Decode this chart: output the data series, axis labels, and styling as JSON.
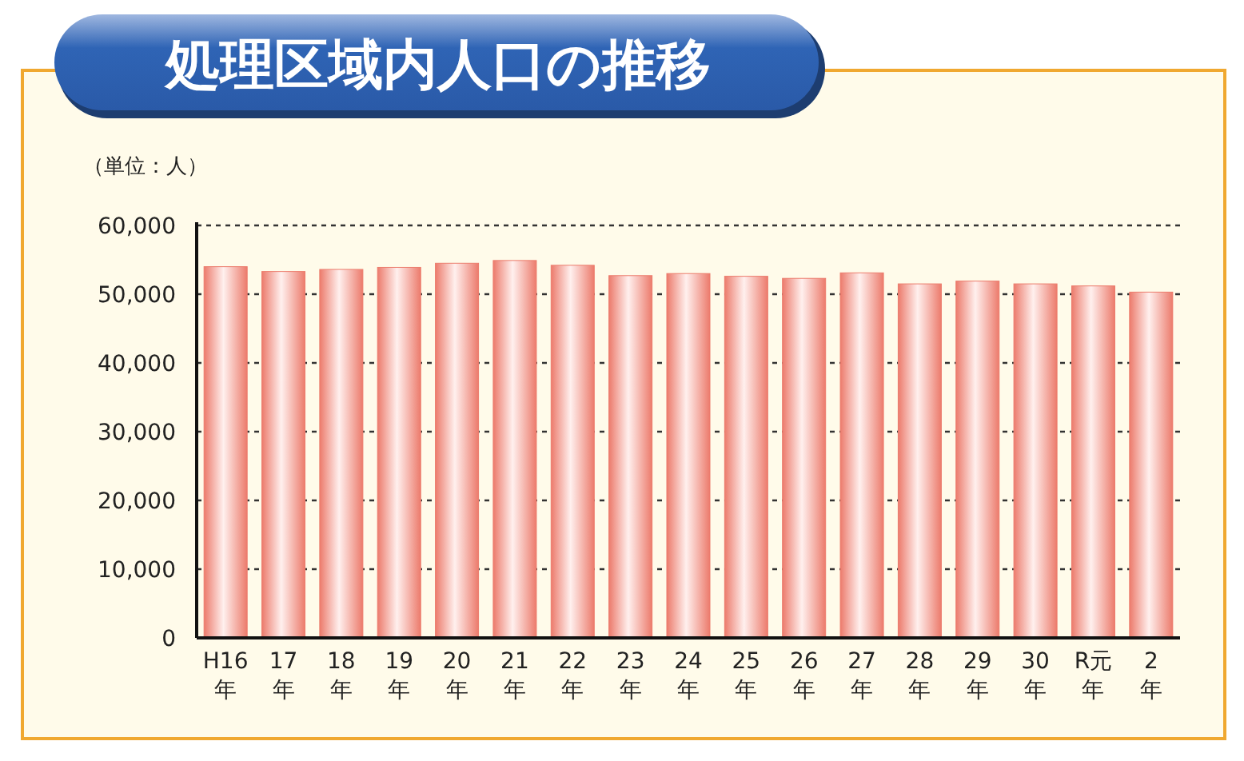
{
  "chart_data": {
    "type": "bar",
    "title": "処理区域内人口の推移",
    "ylabel": "（単位：人）",
    "categories": [
      "H16年",
      "17年",
      "18年",
      "19年",
      "20年",
      "21年",
      "22年",
      "23年",
      "24年",
      "25年",
      "26年",
      "27年",
      "28年",
      "29年",
      "30年",
      "R元年",
      "2年"
    ],
    "values": [
      54000,
      53300,
      53600,
      53900,
      54500,
      54900,
      54200,
      52700,
      53000,
      52600,
      52300,
      53100,
      51500,
      51900,
      51500,
      51200,
      50300
    ],
    "color": "#ec7b6c",
    "ylim": [
      0,
      60000
    ],
    "yticks": [
      {
        "value": 0,
        "label": "0"
      },
      {
        "value": 10000,
        "label": "10,000"
      },
      {
        "value": 20000,
        "label": "20,000"
      },
      {
        "value": 30000,
        "label": "30,000"
      },
      {
        "value": 40000,
        "label": "40,000"
      },
      {
        "value": 50000,
        "label": "50,000"
      },
      {
        "value": 60000,
        "label": "60,000"
      }
    ],
    "grid": "y"
  }
}
